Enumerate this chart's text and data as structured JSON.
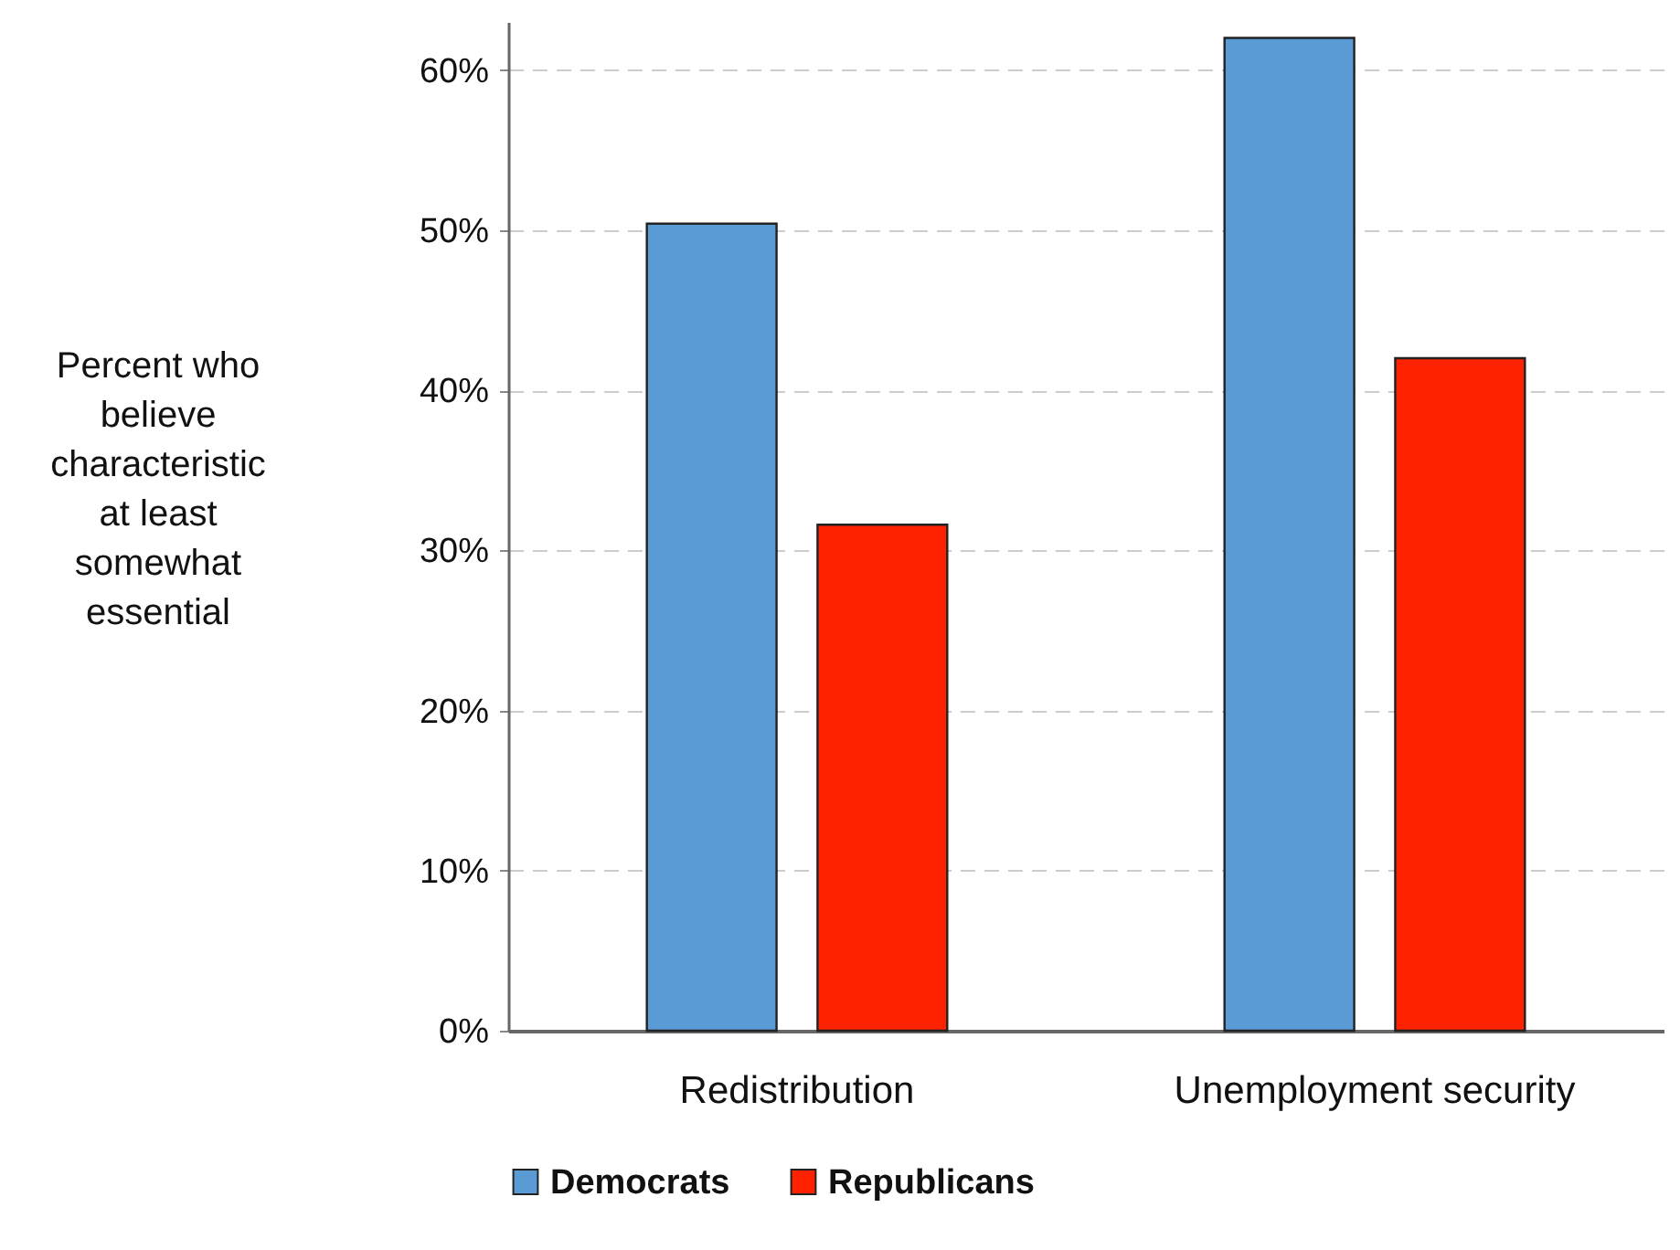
{
  "chart_data": {
    "type": "bar",
    "ylabel": "Percent who\nbelieve\ncharacteristic\nat least\nsomewhat\nessential",
    "categories": [
      "Redistribution",
      "Unemployment security"
    ],
    "series": [
      {
        "name": "Democrats",
        "color": "#5b9bd5",
        "values": [
          50.4,
          62.0
        ]
      },
      {
        "name": "Republicans",
        "color": "#ff2200",
        "values": [
          31.6,
          42.0
        ]
      }
    ],
    "ylim": [
      0,
      63
    ],
    "yticks": [
      {
        "value": 0,
        "label": "0%"
      },
      {
        "value": 10,
        "label": "10%"
      },
      {
        "value": 20,
        "label": "20%"
      },
      {
        "value": 30,
        "label": "30%"
      },
      {
        "value": 40,
        "label": "40%"
      },
      {
        "value": 50,
        "label": "50%"
      },
      {
        "value": 60,
        "label": "60%"
      }
    ],
    "grid": "y",
    "legend": "bottom"
  }
}
